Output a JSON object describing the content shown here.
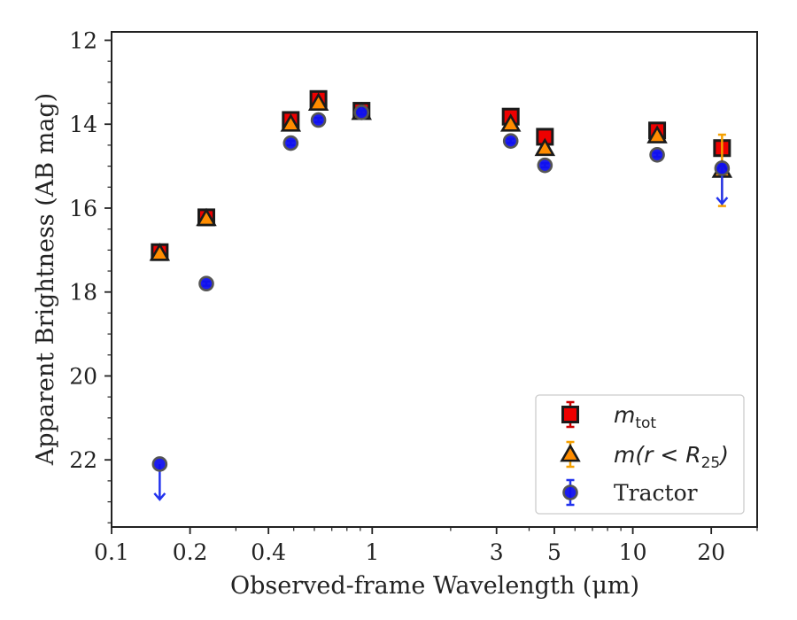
{
  "chart_data": {
    "type": "scatter",
    "title": "",
    "xlabel": "Observed-frame Wavelength (μm)",
    "ylabel": "Apparent Brightness (AB mag)",
    "x_scale": "log",
    "xlim": [
      0.1,
      30
    ],
    "ylim": [
      23.6,
      11.8
    ],
    "y_inverted": true,
    "x_ticks": [
      {
        "value": 0.1,
        "label": "0.1"
      },
      {
        "value": 0.2,
        "label": "0.2"
      },
      {
        "value": 0.4,
        "label": "0.4"
      },
      {
        "value": 1,
        "label": "1"
      },
      {
        "value": 3,
        "label": "3"
      },
      {
        "value": 5,
        "label": "5"
      },
      {
        "value": 10,
        "label": "10"
      },
      {
        "value": 20,
        "label": "20"
      }
    ],
    "y_ticks": [
      {
        "value": 12,
        "label": "12"
      },
      {
        "value": 14,
        "label": "14"
      },
      {
        "value": 16,
        "label": "16"
      },
      {
        "value": 18,
        "label": "18"
      },
      {
        "value": 20,
        "label": "20"
      },
      {
        "value": 22,
        "label": "22"
      }
    ],
    "grid": false,
    "legend_position": "lower-right",
    "series": [
      {
        "name": "m_tot",
        "legend_label": "m",
        "legend_sub": "tot",
        "marker": "square",
        "color": "#ee0000",
        "edge": "#1a1a1a",
        "err_color": "#cc0000",
        "points": [
          {
            "x": 0.153,
            "y": 17.05,
            "err": 0.1
          },
          {
            "x": 0.231,
            "y": 16.22,
            "err": 0.1
          },
          {
            "x": 0.487,
            "y": 13.9,
            "err": 0.08
          },
          {
            "x": 0.622,
            "y": 13.4,
            "err": 0.08
          },
          {
            "x": 0.91,
            "y": 13.68,
            "err": 0.08
          },
          {
            "x": 3.4,
            "y": 13.82,
            "err": 0.05
          },
          {
            "x": 4.6,
            "y": 14.3,
            "err": 0.05
          },
          {
            "x": 12.4,
            "y": 14.15,
            "err": 0.05
          },
          {
            "x": 22.0,
            "y": 14.57,
            "err": 0.08
          }
        ]
      },
      {
        "name": "m(r<R25)",
        "legend_label": "m(r < R",
        "legend_sub": "25",
        "legend_tail": ")",
        "marker": "triangle",
        "color": "#ff8c00",
        "edge": "#1a1a1a",
        "err_color": "#f5a000",
        "points": [
          {
            "x": 0.153,
            "y": 17.08,
            "err": 0.05
          },
          {
            "x": 0.231,
            "y": 16.25,
            "err": 0.05
          },
          {
            "x": 0.487,
            "y": 14.0,
            "err": 0.05
          },
          {
            "x": 0.622,
            "y": 13.5,
            "err": 0.05
          },
          {
            "x": 0.91,
            "y": 13.72,
            "err": 0.05
          },
          {
            "x": 3.4,
            "y": 14.0,
            "err": 0.05
          },
          {
            "x": 4.6,
            "y": 14.58,
            "err": 0.05
          },
          {
            "x": 12.4,
            "y": 14.28,
            "err": 0.05
          },
          {
            "x": 22.0,
            "y": 15.1,
            "err": 0.85
          }
        ]
      },
      {
        "name": "Tractor",
        "legend_label": "Tractor",
        "marker": "circle",
        "color": "#1010ee",
        "edge": "#555555",
        "err_color": "#2233ee",
        "points": [
          {
            "x": 0.153,
            "y": 22.1,
            "err": 0,
            "upper_limit": true
          },
          {
            "x": 0.231,
            "y": 17.8,
            "err": 0.05
          },
          {
            "x": 0.487,
            "y": 14.45,
            "err": 0.05
          },
          {
            "x": 0.622,
            "y": 13.9,
            "err": 0.05
          },
          {
            "x": 0.91,
            "y": 13.72,
            "err": 0.05
          },
          {
            "x": 3.4,
            "y": 14.4,
            "err": 0.05
          },
          {
            "x": 4.6,
            "y": 14.98,
            "err": 0.05
          },
          {
            "x": 12.4,
            "y": 14.73,
            "err": 0.05
          },
          {
            "x": 22.0,
            "y": 15.05,
            "err": 0.1,
            "upper_limit": true
          }
        ]
      }
    ]
  }
}
